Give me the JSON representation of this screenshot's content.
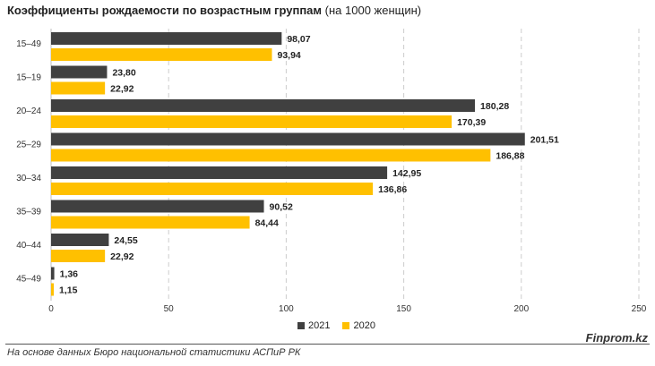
{
  "title": {
    "bold": "Коэффициенты рождаемости по возрастным группам",
    "normal": "(на 1000 женщин)"
  },
  "chart_data": {
    "type": "bar",
    "orientation": "horizontal",
    "categories": [
      "15–49",
      "15–19",
      "20–24",
      "25–29",
      "30–34",
      "35–39",
      "40–44",
      "45–49"
    ],
    "series": [
      {
        "name": "2021",
        "color": "#404040",
        "values": [
          98.07,
          23.8,
          180.28,
          201.51,
          142.95,
          90.52,
          24.55,
          1.36
        ],
        "labels": [
          "98,07",
          "23,80",
          "180,28",
          "201,51",
          "142,95",
          "90,52",
          "24,55",
          "1,36"
        ]
      },
      {
        "name": "2020",
        "color": "#FFC000",
        "values": [
          93.94,
          22.92,
          170.39,
          186.88,
          136.86,
          84.44,
          22.92,
          1.15
        ],
        "labels": [
          "93,94",
          "22,92",
          "170,39",
          "186,88",
          "136,86",
          "84,44",
          "22,92",
          "1,15"
        ]
      }
    ],
    "xlim": [
      0,
      250
    ],
    "xticks": [
      0,
      50,
      100,
      150,
      200,
      250
    ],
    "grid": "vertical dashed",
    "legend_position": "bottom"
  },
  "legend": {
    "items": [
      "2021",
      "2020"
    ]
  },
  "footer": {
    "source": "На основе данных Бюро национальной статистики АСПиР РК",
    "brand": "Finprom.kz"
  }
}
